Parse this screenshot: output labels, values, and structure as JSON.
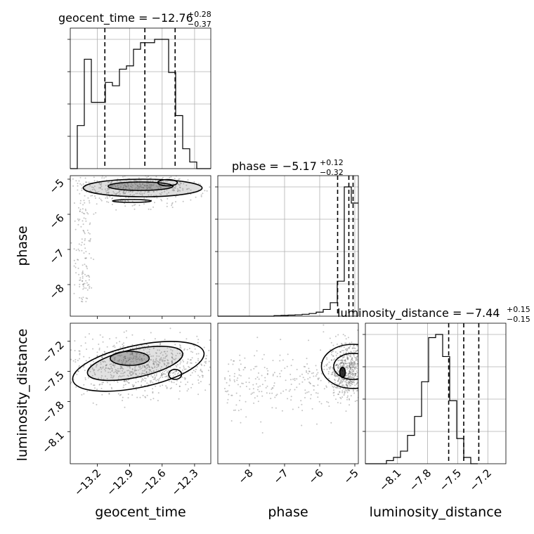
{
  "chart_data": {
    "type": "corner",
    "parameters": [
      "geocent_time",
      "phase",
      "luminosity_distance"
    ],
    "axis_labels": {
      "x": [
        "geocent_time",
        "phase",
        "luminosity_distance"
      ],
      "y": [
        "phase",
        "luminosity_distance"
      ]
    },
    "titles": [
      {
        "name": "geocent_time",
        "text": "geocent_time = −12.76",
        "plus": "+0.28",
        "minus": "−0.37"
      },
      {
        "name": "phase",
        "text": "phase = −5.17",
        "plus": "+0.12",
        "minus": "−0.32"
      },
      {
        "name": "luminosity_distance",
        "text": "luminosity_distance = −7.44",
        "plus": "+0.15",
        "minus": "−0.15"
      }
    ],
    "ranges": {
      "geocent_time": [
        -13.45,
        -12.15
      ],
      "phase": [
        -8.9,
        -4.9
      ],
      "luminosity_distance": [
        -8.42,
        -7.02
      ]
    },
    "ticks": {
      "geocent_time": {
        "values": [
          -13.2,
          -12.9,
          -12.6,
          -12.3
        ],
        "labels": [
          "−13.2",
          "−12.9",
          "−12.6",
          "−12.3"
        ]
      },
      "phase": {
        "values": [
          -8,
          -7,
          -6,
          -5
        ],
        "labels": [
          "−8",
          "−7",
          "−6",
          "−5"
        ]
      },
      "luminosity_distance": {
        "values": [
          -8.1,
          -7.8,
          -7.5,
          -7.2
        ],
        "labels": [
          "−8.1",
          "−7.8",
          "−7.5",
          "−7.2"
        ]
      }
    },
    "histograms": {
      "geocent_time": {
        "bin_start": -13.45,
        "bin_width": 0.065,
        "counts": [
          0,
          13,
          33,
          20,
          20,
          26,
          25,
          30,
          31,
          36,
          38,
          38,
          39,
          39,
          29,
          16,
          6,
          2,
          0,
          0
        ],
        "quantiles": [
          -13.13,
          -12.76,
          -12.48
        ]
      },
      "phase": {
        "bin_start": -8.9,
        "bin_width": 0.2,
        "counts": [
          0,
          0,
          0,
          0,
          0,
          0,
          0,
          0,
          0.2,
          0.3,
          0.4,
          0.5,
          0.7,
          1,
          1.5,
          2.5,
          5,
          13,
          48,
          42
        ],
        "quantiles": [
          -5.49,
          -5.17,
          -5.05
        ]
      },
      "luminosity_distance": {
        "bin_start": -8.42,
        "bin_width": 0.07,
        "counts": [
          0,
          0,
          0,
          1,
          2,
          4,
          9,
          15,
          26,
          40,
          41,
          34,
          20,
          8,
          2,
          0
        ],
        "quantiles": [
          -7.59,
          -7.44,
          -7.29
        ]
      }
    },
    "grid": true,
    "colors": {
      "line": "#000000",
      "grid": "#b0b0b0",
      "points": "#555555"
    }
  }
}
